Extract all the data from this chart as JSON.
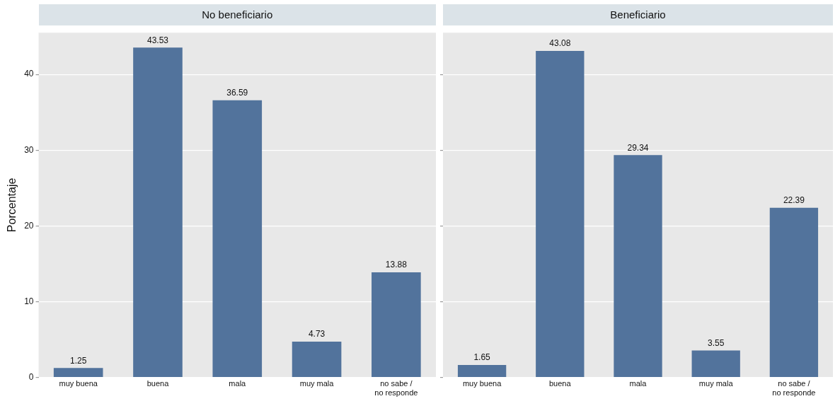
{
  "chart_data": [
    {
      "type": "bar",
      "title": "No beneficiario",
      "ylabel": "Porcentaje",
      "categories": [
        "muy buena",
        "buena",
        "mala",
        "muy mala",
        "no sabe / no responde"
      ],
      "values": [
        1.25,
        43.53,
        36.59,
        4.73,
        13.88
      ],
      "color": "#52739c",
      "ylim": [
        0,
        45.5
      ],
      "yticks": [
        0,
        10,
        20,
        30,
        40
      ],
      "grid": "y",
      "data_labels": true
    },
    {
      "type": "bar",
      "title": "Beneficiario",
      "categories": [
        "muy buena",
        "buena",
        "mala",
        "muy mala",
        "no sabe / no responde"
      ],
      "values": [
        1.65,
        43.08,
        29.34,
        3.55,
        22.39
      ],
      "color": "#52739c",
      "ylim": [
        0,
        45.5
      ],
      "yticks": [
        0,
        10,
        20,
        30,
        40
      ],
      "grid": "y",
      "data_labels": true,
      "tick_labels": "x"
    }
  ]
}
